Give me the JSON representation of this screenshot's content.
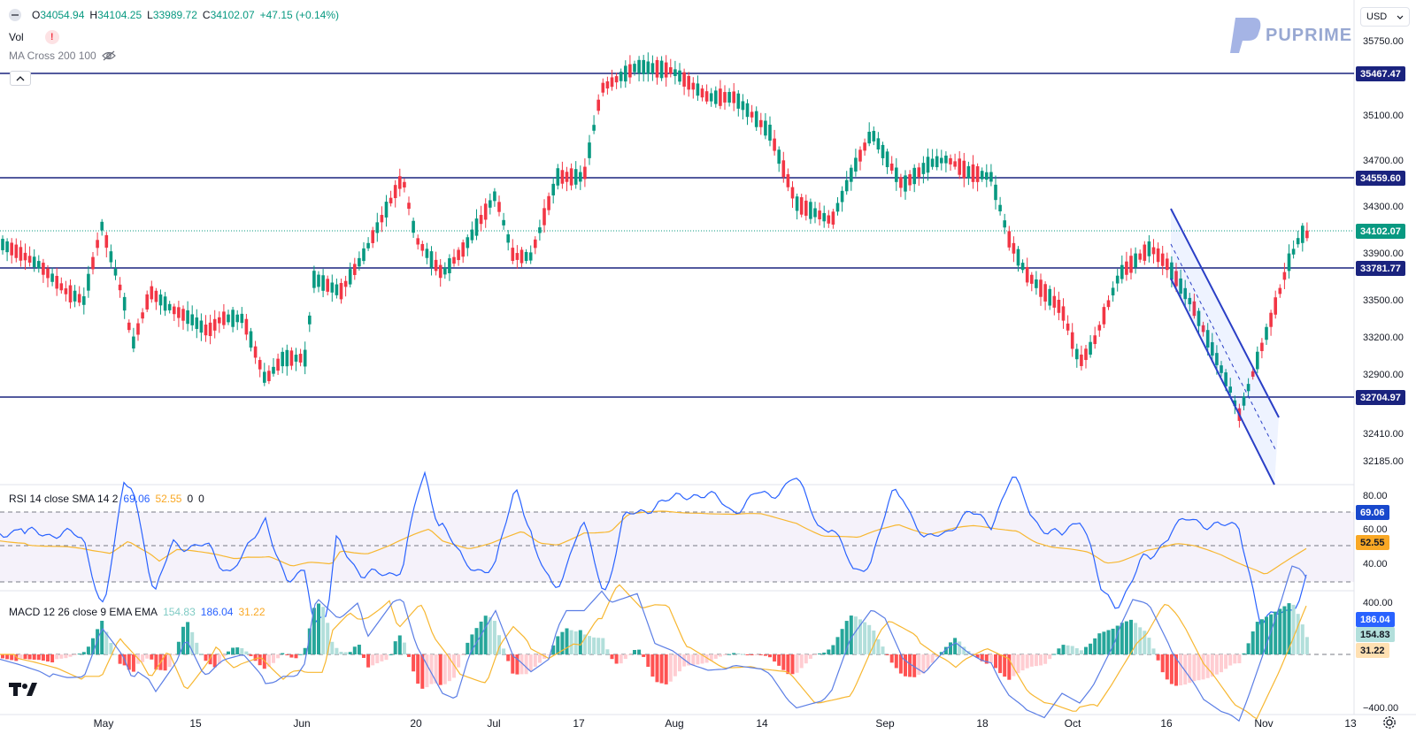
{
  "main_legend": {
    "open_label": "O",
    "open": "34054.94",
    "high_label": "H",
    "high": "34104.25",
    "low_label": "L",
    "low": "33989.72",
    "close_label": "C",
    "close": "34102.07",
    "change": "+47.15 (+0.14%)"
  },
  "vol_legend": {
    "label": "Vol",
    "warning": "!"
  },
  "ma_legend": {
    "label": "MA Cross 200 100"
  },
  "currency": {
    "label": "USD"
  },
  "logo": {
    "text": "PUPRIME"
  },
  "price_axis": {
    "ticks": [
      "35750.00",
      "35100.00",
      "34700.00",
      "34300.00",
      "33900.00",
      "33500.00",
      "33200.00",
      "32900.00",
      "32410.00",
      "32185.00"
    ]
  },
  "price_tags": [
    {
      "label": "35467.47",
      "color": "#1a237e"
    },
    {
      "label": "34559.60",
      "color": "#1a237e"
    },
    {
      "label": "34102.07",
      "color": "#089981"
    },
    {
      "label": "33781.77",
      "color": "#1a237e"
    },
    {
      "label": "32704.97",
      "color": "#1a237e"
    }
  ],
  "rsi": {
    "legend": {
      "label": "RSI 14 close SMA 14 2",
      "value1": "69.06",
      "value2": "52.55",
      "value3": "0",
      "value4": "0"
    },
    "axis": [
      "80.00",
      "60.00",
      "40.00"
    ],
    "tags": [
      {
        "label": "69.06",
        "color": "#1848cc"
      },
      {
        "label": "52.55",
        "color": "#f9a825"
      }
    ]
  },
  "macd": {
    "legend": {
      "label": "MACD 12 26 close 9 EMA EMA",
      "value1": "154.83",
      "value2": "186.04",
      "value3": "31.22"
    },
    "axis": [
      "400.00",
      "−400.00"
    ],
    "tags": [
      {
        "label": "186.04",
        "color": "#2962ff"
      },
      {
        "label": "154.83",
        "color": "#b2dfdb"
      },
      {
        "label": "31.22",
        "color": "#ffe0b2"
      }
    ]
  },
  "time_axis": [
    {
      "label": "May"
    },
    {
      "label": "15"
    },
    {
      "label": "Jun"
    },
    {
      "label": "20"
    },
    {
      "label": "Jul"
    },
    {
      "label": "17"
    },
    {
      "label": "Aug"
    },
    {
      "label": "14"
    },
    {
      "label": "Sep"
    },
    {
      "label": "18"
    },
    {
      "label": "Oct"
    },
    {
      "label": "16"
    },
    {
      "label": "Nov"
    },
    {
      "label": "13"
    }
  ],
  "colors": {
    "up": "#089981",
    "down": "#f23645",
    "level": "#1a237e",
    "rsi": "#2962ff",
    "rsi_ma": "#f7b731",
    "macd": "#5b7ee5",
    "signal": "#f7b731"
  },
  "icons": [
    "collapse-icon",
    "warning-icon",
    "eye-off-icon",
    "chevron-up-icon",
    "chevron-down-icon",
    "tradingview-logo-icon",
    "gear-icon"
  ]
}
